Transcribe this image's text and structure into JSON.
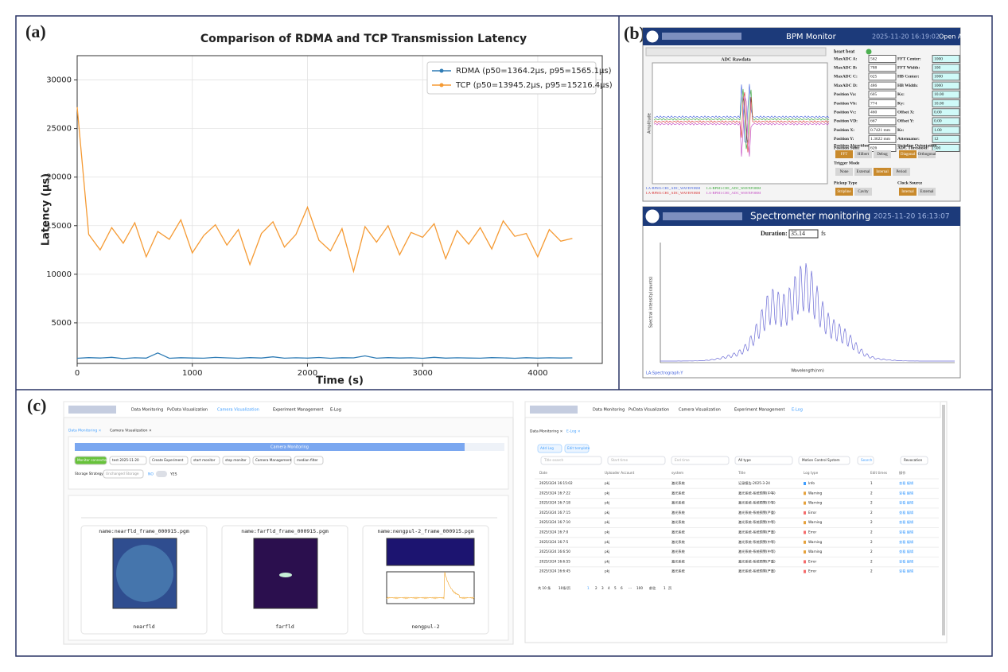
{
  "panel_labels": [
    "(a)",
    "(b)",
    "(c)"
  ],
  "chart_data": {
    "type": "line",
    "title": "Comparison of RDMA and TCP Transmission Latency",
    "x_label": "Time (s)",
    "y_label": "Latency (μs)",
    "x": [
      0,
      100,
      200,
      300,
      400,
      500,
      600,
      700,
      800,
      900,
      1000,
      1100,
      1200,
      1300,
      1400,
      1500,
      1600,
      1700,
      1800,
      1900,
      2000,
      2100,
      2200,
      2300,
      2400,
      2500,
      2600,
      2700,
      2800,
      2900,
      3000,
      3100,
      3200,
      3300,
      3400,
      3500,
      3600,
      3700,
      3800,
      3900,
      4000,
      4100,
      4200,
      4300
    ],
    "series": [
      {
        "name": "RDMA (p50=1364.2μs, p95=1565.1μs)",
        "color": "#2f7cb5",
        "values": [
          1350,
          1420,
          1380,
          1450,
          1320,
          1400,
          1370,
          1900,
          1350,
          1410,
          1380,
          1360,
          1440,
          1390,
          1350,
          1420,
          1380,
          1500,
          1360,
          1400,
          1370,
          1430,
          1350,
          1410,
          1390,
          1600,
          1360,
          1420,
          1380,
          1400,
          1350,
          1450,
          1370,
          1400,
          1380,
          1360,
          1420,
          1390,
          1350,
          1410,
          1370,
          1400,
          1380,
          1390
        ]
      },
      {
        "name": "TCP (p50=13945.2μs, p95=15216.4μs)",
        "color": "#f59a33",
        "values": [
          27200,
          14100,
          12500,
          14800,
          13200,
          15300,
          11800,
          14400,
          13600,
          15600,
          12200,
          14000,
          15100,
          13000,
          14600,
          11000,
          14200,
          15400,
          12800,
          14100,
          16900,
          13500,
          12400,
          14700,
          10300,
          14900,
          13300,
          15000,
          12000,
          14300,
          13800,
          15200,
          11600,
          14500,
          13100,
          14800,
          12600,
          15500,
          13900,
          14200,
          11800,
          14600,
          13400,
          13700
        ]
      }
    ],
    "xlim": [
      0,
      4560
    ],
    "ylim": [
      820,
      32500
    ],
    "xticks": [
      0,
      1000,
      2000,
      3000,
      4000
    ],
    "yticks": [
      5000,
      10000,
      15000,
      20000,
      25000,
      30000
    ],
    "grid": true,
    "legend": "upper right"
  },
  "bpm_monitor": {
    "title": "BPM Monitor",
    "time": "2025-11-20 16:19:02",
    "open_button": "Open ALL",
    "plot_title": "ADC Rawdata",
    "plot_y_label": "Amplitude",
    "legend": [
      "LA-BPM1:CH1_ADC_WAVEFORM",
      "LA-BPM1:CH1_ADC_WAVEFORM",
      "LA-BPM1:CH1_ADC_WAVEFORM",
      "LA-BPM1:CH1_ADC_WAVEFORM"
    ],
    "heart_beat": "heart beat",
    "left_fields": [
      [
        "MaxADC A:",
        "562"
      ],
      [
        "MaxADC B:",
        "788"
      ],
      [
        "MaxADC C:",
        "625"
      ],
      [
        "MaxADC D:",
        "486"
      ],
      [
        "Position Va:",
        "605"
      ],
      [
        "Position Vb:",
        "774"
      ],
      [
        "Position Vc:",
        "460"
      ],
      [
        "Position VD:",
        "667"
      ],
      [
        "Position X:",
        "0.7421 mm"
      ],
      [
        "Position Y:",
        "1.3622 mm"
      ],
      [
        "Position Sum:",
        "626"
      ]
    ],
    "right_fields": [
      [
        "FFT Center:",
        "1000"
      ],
      [
        "FFT Width:",
        "100"
      ],
      [
        "HB Center:",
        "1000"
      ],
      [
        "HB Width:",
        "1000"
      ],
      [
        "Kx:",
        "10.00"
      ],
      [
        "Ky:",
        "10.00"
      ],
      [
        "Offset X:",
        "0.00"
      ],
      [
        "Offset Y:",
        "0.00"
      ],
      [
        "Ks:",
        "1.00"
      ],
      [
        "Attenuator:",
        "12"
      ],
      [
        "ADC Threshold:",
        "500"
      ]
    ],
    "groups": [
      {
        "title": "Position Algorithm",
        "buttons": [
          "FFT",
          "Hilbert",
          "Debug"
        ],
        "active": 0
      },
      {
        "title": "Stripline Orientation",
        "buttons": [
          "Diagonal",
          "Orthogonal"
        ],
        "active": 0
      },
      {
        "title": "Trigger Mode",
        "buttons": [
          "None",
          "External",
          "Internal",
          "Period"
        ],
        "active": 2
      },
      {
        "title": "Pickup Type",
        "buttons": [
          "Stripline",
          "Cavity"
        ],
        "active": 0
      },
      {
        "title": "Clock Source",
        "buttons": [
          "Internal",
          "External"
        ],
        "active": 0
      }
    ]
  },
  "spectrometer": {
    "title": "Spectrometer monitoring",
    "time": "2025-11-20 16:13:07",
    "duration_label": "Duration:",
    "duration": "35.14",
    "duration_unit": "fs",
    "x_label": "Wavelength(nm)",
    "y_label": "Spectral intensity(counts)",
    "legend": "LA:Spectrograph:Y"
  },
  "camera_page": {
    "nav": [
      "Data Monitoring",
      "PvData Visualization",
      "Camera Visualization",
      "Experiment Management",
      "E-Log"
    ],
    "tabs": [
      "Data Monitoring ×",
      "Camera Visualization ×"
    ],
    "progress": "Camera Monitoring",
    "controls": [
      "Monitor connected",
      "test 2025-11-20",
      "Create Experiment",
      "start monitor",
      "stop monitor",
      "Camera Management",
      "median filter"
    ],
    "storage_label": "Storage Strategy:",
    "storage_value": "Unchanged Storage",
    "no": "NO",
    "yes": "YES",
    "images": [
      {
        "name": "name:nearfld_frame_000915.pgm",
        "caption": "nearfld"
      },
      {
        "name": "name:farfld_frame_000915.pgm",
        "caption": "farfld"
      },
      {
        "name": "name:nengpul-2_frame_000915.pgm",
        "caption": "nengpul-2"
      }
    ]
  },
  "elog_page": {
    "nav": [
      "Data Monitoring",
      "PvData Visualization",
      "Camera Visualization",
      "Experiment Management",
      "E-Log"
    ],
    "tabs": [
      "Data Monitoring ×",
      "E-Log ×"
    ],
    "buttons": [
      "Add Log",
      "Edit template"
    ],
    "filters": [
      "Title search",
      "Start time",
      "End time",
      "All type",
      "Motion Control System",
      "Search",
      "Revocation"
    ],
    "headers": [
      "Date",
      "Uploader Account",
      "system",
      "Title",
      "Log type",
      "Edit times",
      "操作"
    ],
    "rows": [
      [
        "2025/3/24 16:15:02",
        "pkj",
        "激光系统",
        "记录报告-2025-3-24",
        "Info",
        "1",
        "查看 编辑"
      ],
      [
        "2025/3/24 16:7:22",
        "pkj",
        "激光系统",
        "激光系统-系统预警(中等)",
        "Warning",
        "2",
        "查看 编辑"
      ],
      [
        "2025/3/24 16:7:18",
        "pkj",
        "激光系统",
        "激光系统-系统预警(中等)",
        "Warning",
        "2",
        "查看 编辑"
      ],
      [
        "2025/3/24 16:7:15",
        "pkj",
        "激光系统",
        "激光系统-系统预警(严重)",
        "Error",
        "2",
        "查看 编辑"
      ],
      [
        "2025/3/24 16:7:10",
        "pkj",
        "激光系统",
        "激光系统-系统预警(中等)",
        "Warning",
        "2",
        "查看 编辑"
      ],
      [
        "2025/3/24 16:7:0",
        "pkj",
        "激光系统",
        "激光系统-系统预警(严重)",
        "Error",
        "2",
        "查看 编辑"
      ],
      [
        "2025/3/24 16:7:5",
        "pkj",
        "激光系统",
        "激光系统-系统预警(中等)",
        "Warning",
        "2",
        "查看 编辑"
      ],
      [
        "2025/3/24 16:6:50",
        "pkj",
        "激光系统",
        "激光系统-系统预警(中等)",
        "Warning",
        "2",
        "查看 编辑"
      ],
      [
        "2025/3/24 16:6:55",
        "pkj",
        "激光系统",
        "激光系统-系统预警(严重)",
        "Error",
        "2",
        "查看 编辑"
      ],
      [
        "2025/3/24 16:6:45",
        "pkj",
        "激光系统",
        "激光系统-系统预警(严重)",
        "Error",
        "2",
        "查看 编辑"
      ]
    ],
    "pagination": [
      "共 10 条",
      "10条/页",
      "1",
      "2",
      "3",
      "4",
      "5",
      "6",
      "···",
      "100",
      "前往",
      "1",
      "页"
    ]
  }
}
